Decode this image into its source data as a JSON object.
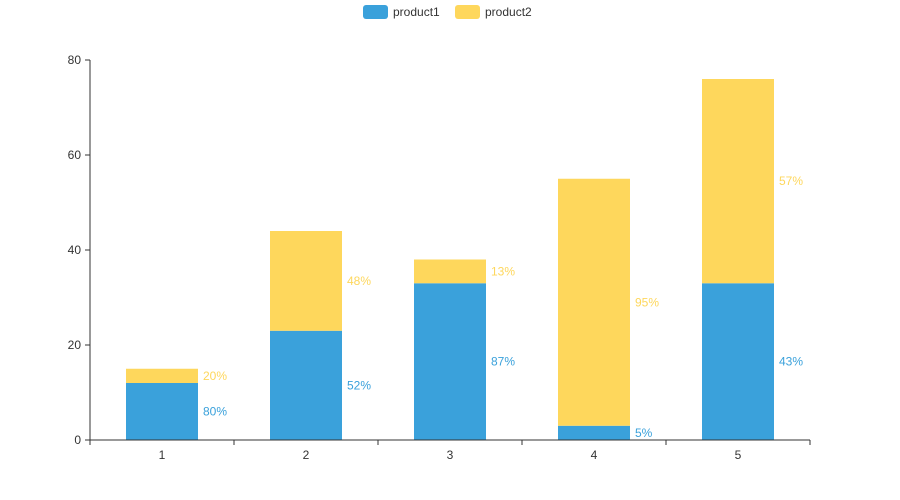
{
  "chart_data": {
    "type": "bar",
    "stacked": true,
    "title": "",
    "xlabel": "",
    "ylabel": "",
    "categories": [
      "1",
      "2",
      "3",
      "4",
      "5"
    ],
    "ylim": [
      0,
      80
    ],
    "yticks": [
      0,
      20,
      40,
      60,
      80
    ],
    "grid": false,
    "legend_position": "top-center",
    "series": [
      {
        "name": "product1",
        "color": "#3aa1db",
        "values": [
          12,
          23,
          33,
          3,
          33
        ],
        "labels": [
          "80%",
          "52%",
          "87%",
          "5%",
          "43%"
        ]
      },
      {
        "name": "product2",
        "color": "#fed75c",
        "values": [
          3,
          21,
          5,
          52,
          43
        ],
        "labels": [
          "20%",
          "48%",
          "13%",
          "95%",
          "57%"
        ]
      }
    ]
  }
}
